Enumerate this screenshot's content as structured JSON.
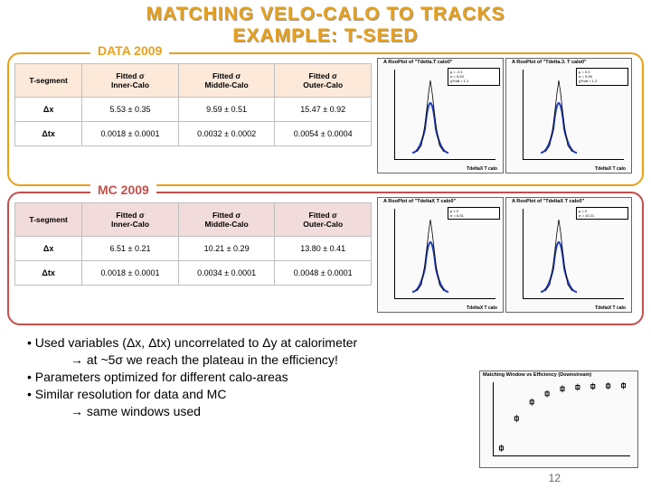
{
  "title": {
    "line1": "MATCHING VELO-CALO TO TRACKS",
    "line2": "EXAMPLE: T-SEED"
  },
  "data_panel": {
    "label": "DATA 2009",
    "border_color": "#e8a018",
    "header_bg": "#fde9d9",
    "columns": [
      "T-segment",
      "Fitted σ\nInner-Calo",
      "Fitted σ\nMiddle-Calo",
      "Fitted σ\nOuter-Calo"
    ],
    "rows": [
      {
        "label": "Δx",
        "cells": [
          "5.53 ± 0.35",
          "9.59 ± 0.51",
          "15.47 ± 0.92"
        ]
      },
      {
        "label": "Δtx",
        "cells": [
          "0.0018 ± 0.0001",
          "0.0032 ± 0.0002",
          "0.0054 ± 0.0004"
        ]
      }
    ],
    "plots": [
      {
        "title": "A RooPlot of \"Tdelta.T calo0\"",
        "xlabel": "TdeltaX T calo",
        "fit": [
          "μ = -0.1",
          "σ = 5.53",
          "χ²/ndf"
        ]
      },
      {
        "title": "A RooPlot of \"Tdelta.3. T calo0\"",
        "xlabel": "TdeltaX T calo",
        "fit": [
          "μ = 0.0",
          "σ = 9.59",
          "χ²/ndf"
        ]
      }
    ]
  },
  "mc_panel": {
    "label": "MC 2009",
    "border_color": "#c0504d",
    "header_bg": "#f2dcdb",
    "columns": [
      "T-segment",
      "Fitted σ\nInner-Calo",
      "Fitted σ\nMiddle-Calo",
      "Fitted σ\nOuter-Calo"
    ],
    "rows": [
      {
        "label": "Δx",
        "cells": [
          "6.51 ± 0.21",
          "10.21 ± 0.29",
          "13.80 ± 0.41"
        ]
      },
      {
        "label": "Δtx",
        "cells": [
          "0.0018 ± 0.0001",
          "0.0034 ± 0.0001",
          "0.0048 ± 0.0001"
        ]
      }
    ],
    "plots": [
      {
        "title": "A RooPlot of \"TdeltaX T calo0\"",
        "xlabel": "TdeltaX T calo",
        "fit": [
          "μ ≈ 0",
          "σ = 6.51"
        ]
      },
      {
        "title": "A RooPlot of \"TdeltaX T calo0\"",
        "xlabel": "TdeltaX T calo",
        "fit": [
          "μ ≈ 0",
          "σ = 10.21"
        ]
      }
    ]
  },
  "bullets": {
    "b1": "• Used variables (Δx, Δtx) uncorrelated to Δy at calorimeter",
    "b1a": "→ at ~5σ we reach the plateau in the efficiency!",
    "b2": "• Parameters optimized for different calo-areas",
    "b3": "• Similar resolution for data and MC",
    "b3a": "→ same windows used"
  },
  "eff_plot": {
    "title": "Matching Window vs Efficiency (Downstream)",
    "points_x": [
      1.5,
      2.5,
      3.5,
      4.5,
      5.5,
      6.5,
      7.5,
      8.5,
      9.5
    ],
    "points_y": [
      0.6,
      0.78,
      0.88,
      0.93,
      0.96,
      0.97,
      0.975,
      0.978,
      0.98
    ],
    "ylim": [
      0.55,
      1.0
    ],
    "xlim": [
      1,
      10
    ],
    "marker_color": "#000000"
  },
  "gauss_fit_color": "#1f3ab8",
  "marker_color": "#000000",
  "slide_number": "12"
}
